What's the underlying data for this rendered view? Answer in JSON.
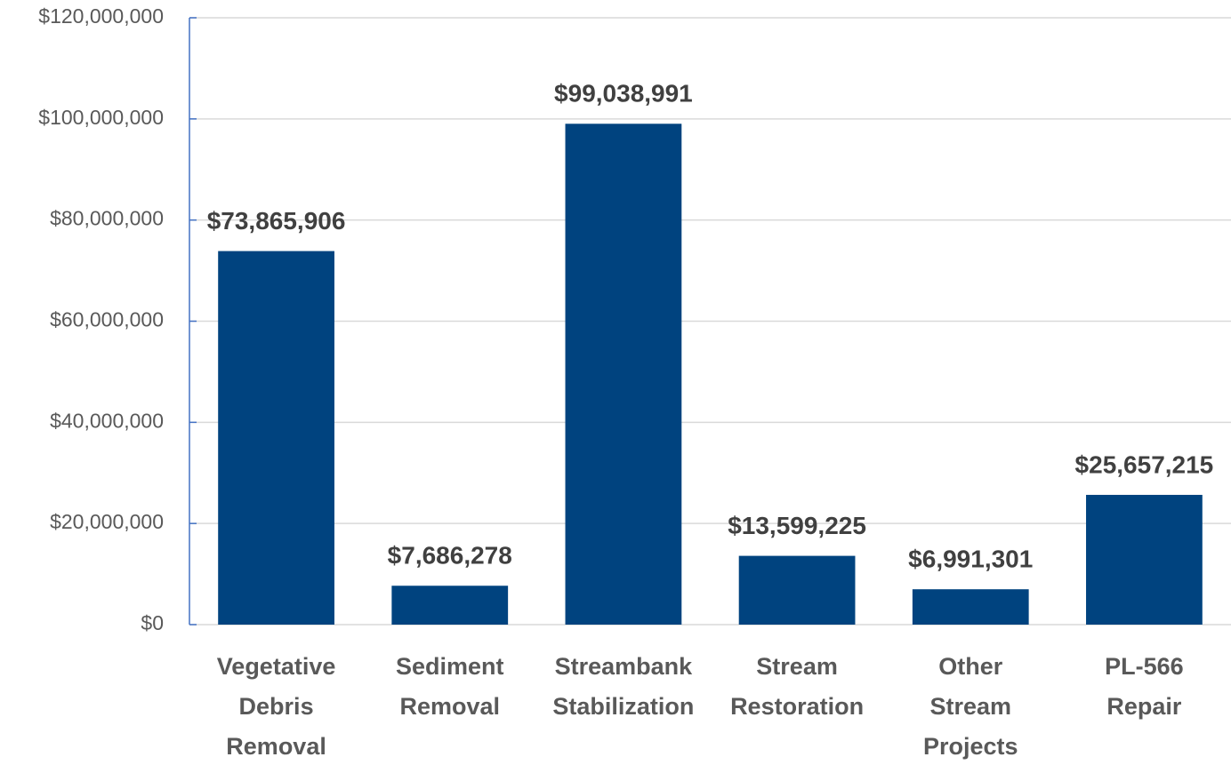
{
  "chart_data": {
    "type": "bar",
    "categories": [
      "Vegetative Debris Removal",
      "Sediment Removal",
      "Streambank Stabilization",
      "Stream Restoration",
      "Other Stream Projects",
      "PL-566 Repair"
    ],
    "values": [
      73865906,
      7686278,
      99038991,
      13599225,
      6991301,
      25657215
    ],
    "value_labels": [
      "$73,865,906",
      "$7,686,278",
      "$99,038,991",
      "$13,599,225",
      "$6,991,301",
      "$25,657,215"
    ],
    "color": "#00437f",
    "ylim": [
      0,
      120000000
    ],
    "yticks": [
      {
        "value": 0,
        "label": "$0"
      },
      {
        "value": 20000000,
        "label": "$20,000,000"
      },
      {
        "value": 40000000,
        "label": "$40,000,000"
      },
      {
        "value": 60000000,
        "label": "$60,000,000"
      },
      {
        "value": 80000000,
        "label": "$80,000,000"
      },
      {
        "value": 100000000,
        "label": "$100,000,000"
      },
      {
        "value": 120000000,
        "label": "$120,000,000"
      }
    ],
    "grid": true
  }
}
